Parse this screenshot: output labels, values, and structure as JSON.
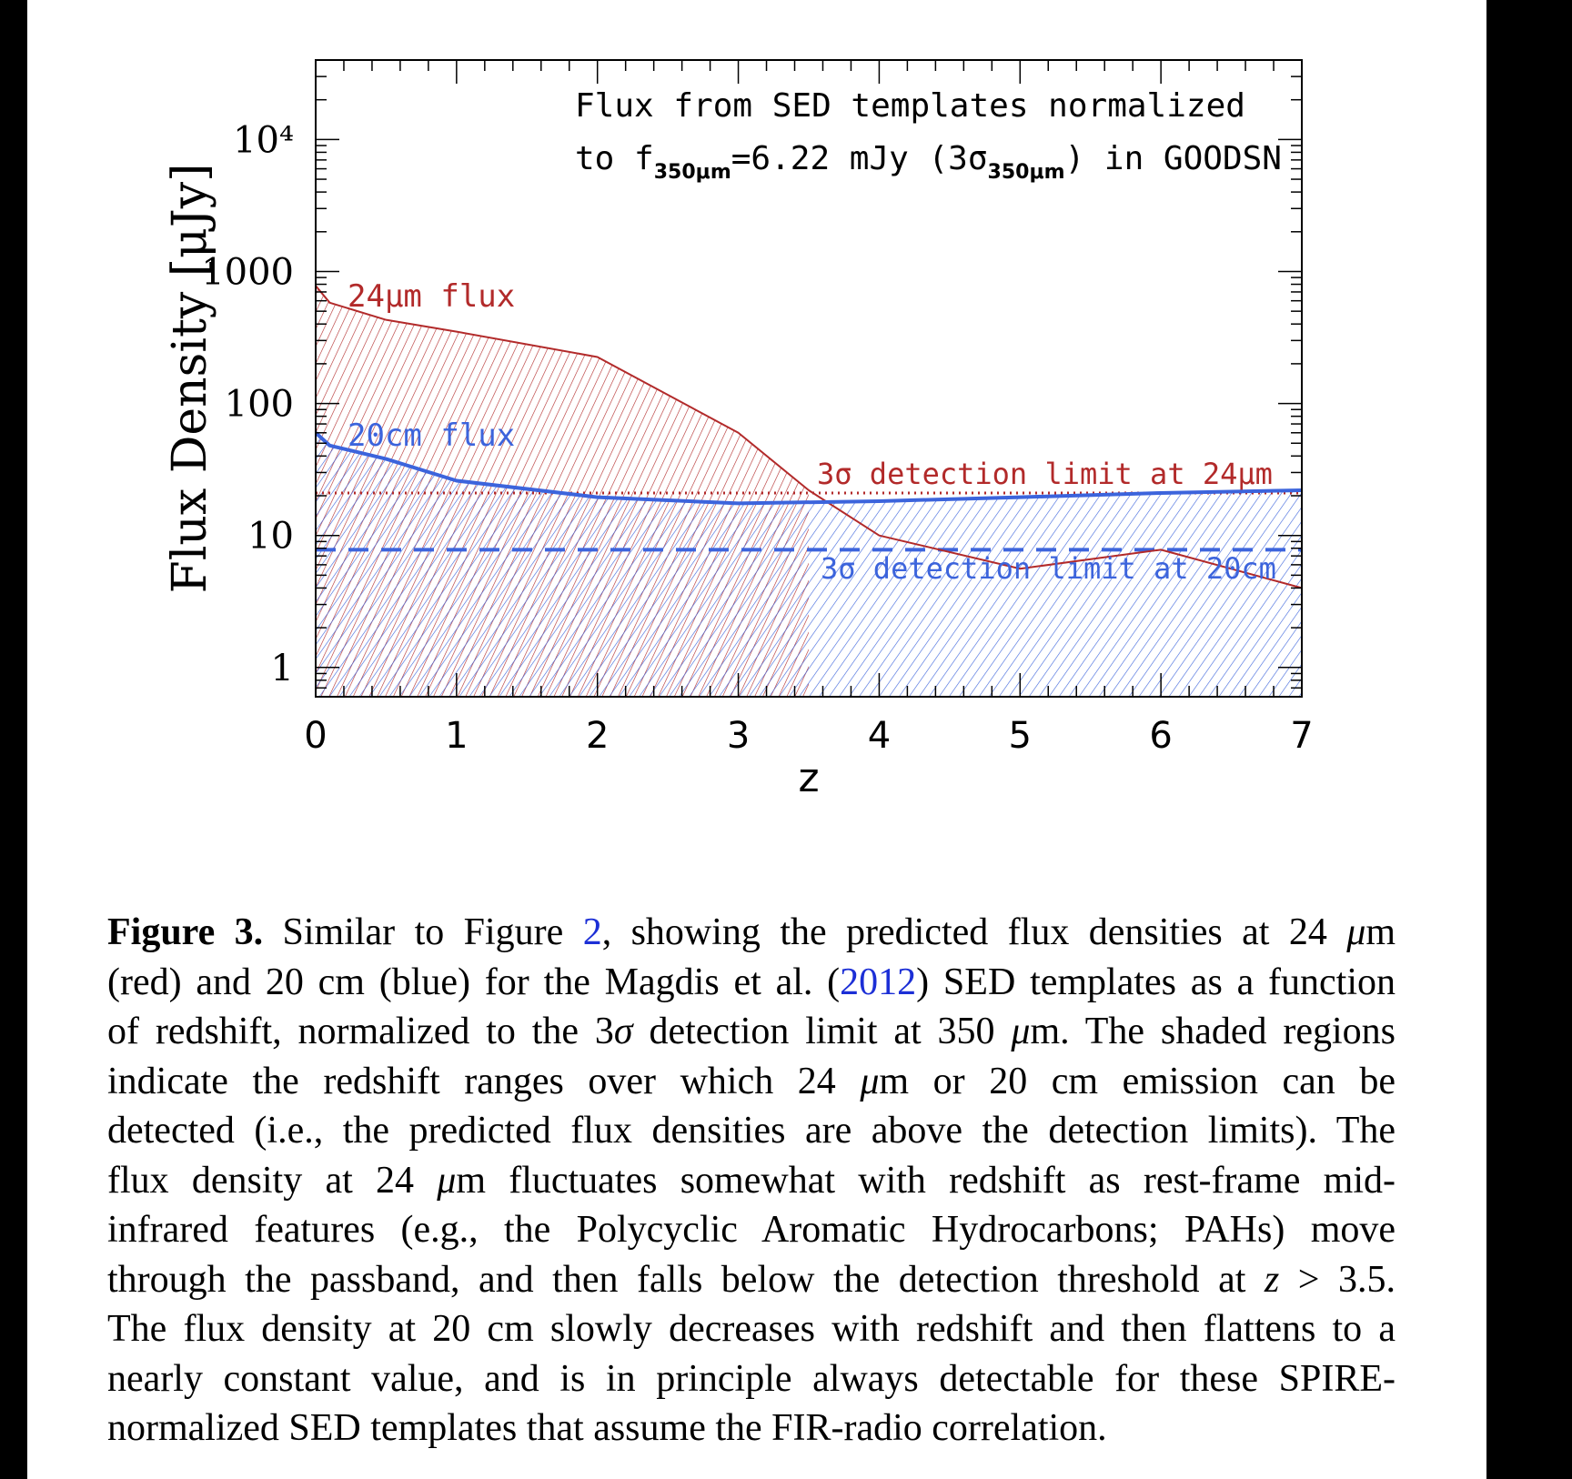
{
  "chart_data": {
    "type": "line",
    "x_label": "z",
    "y_label": "Flux Density [μJy]",
    "y_scale": "log",
    "xlim": [
      0,
      7
    ],
    "ylim": [
      0.6,
      40000
    ],
    "x_ticks": [
      0,
      1,
      2,
      3,
      4,
      5,
      6,
      7
    ],
    "y_ticks": [
      {
        "value": 1,
        "label": "1"
      },
      {
        "value": 10,
        "label": "10"
      },
      {
        "value": 100,
        "label": "100"
      },
      {
        "value": 1000,
        "label": "1000"
      },
      {
        "value": 10000,
        "label": "10⁴"
      }
    ],
    "annotation_line1": "Flux from SED templates normalized",
    "annotation_line2_prefix": "to f",
    "annotation_line2_sub": "350μm",
    "annotation_line2_mid": "=6.22 mJy (3σ",
    "annotation_line2_sub2": "350μm",
    "annotation_line2_suffix": ") in GOODSN",
    "series": [
      {
        "name": "24μm flux",
        "color": "#b22a2a",
        "x": [
          0.0,
          0.1,
          0.5,
          1.0,
          2.0,
          3.0,
          3.5,
          4.0,
          5.0,
          6.0,
          7.0
        ],
        "y": [
          780,
          580,
          430,
          350,
          225,
          60,
          22,
          10,
          5.6,
          7.8,
          4.0
        ]
      },
      {
        "name": "20cm flux",
        "color": "#3c64dc",
        "x": [
          0.0,
          0.1,
          0.5,
          1.0,
          2.0,
          3.0,
          4.0,
          5.0,
          6.0,
          7.0
        ],
        "y": [
          60,
          48,
          38,
          26,
          19.5,
          17.5,
          18.2,
          19.5,
          21,
          22
        ]
      }
    ],
    "limits": [
      {
        "name": "3σ detection limit at 24μm",
        "color": "#b22a2a",
        "style": "dotted",
        "y": 21
      },
      {
        "name": "3σ detection limit at 20cm",
        "color": "#3c64dc",
        "style": "dashed",
        "y": 7.8
      }
    ],
    "shaded_regions": [
      {
        "series": "24μm flux",
        "color": "#b22a2a",
        "x_range": [
          0,
          3.5
        ]
      },
      {
        "series": "20cm flux",
        "color": "#3c64dc",
        "x_range": [
          0,
          7
        ]
      }
    ]
  },
  "caption": {
    "label": "Figure 3.",
    "link_figure": "2",
    "link_year": "2012",
    "lines": [
      [
        "",
        " Similar to Figure ",
        "LINKFIG",
        ", showing the predicted flux densities at 24 ",
        "ITAL:μ",
        "m"
      ],
      [
        "(red) and 20 cm (blue) for the Magdis et al. (",
        "LINKYEAR",
        ") SED templates as a function"
      ],
      [
        "of redshift, normalized to the 3",
        "ITAL:σ",
        " detection limit at 350 ",
        "ITAL:μ",
        "m. The shaded regions"
      ],
      [
        "indicate the redshift ranges over which 24 ",
        "ITAL:μ",
        "m or 20 cm emission can be"
      ],
      [
        "detected (i.e., the predicted flux densities are above the detection limits). The"
      ],
      [
        "flux density at 24 ",
        "ITAL:μ",
        "m fluctuates somewhat with redshift as rest-frame mid-"
      ],
      [
        "infrared features (e.g., the Polycyclic Aromatic Hydrocarbons; PAHs) move"
      ],
      [
        "through the passband, and then falls below the detection threshold at ",
        "ITAL:z",
        " > 3.5."
      ],
      [
        "The flux density at 20 cm slowly decreases with redshift and then flattens to a"
      ],
      [
        "nearly constant value, and is in principle always detectable for these SPIRE-"
      ],
      [
        "normalized SED templates that assume the FIR-radio correlation."
      ]
    ]
  }
}
